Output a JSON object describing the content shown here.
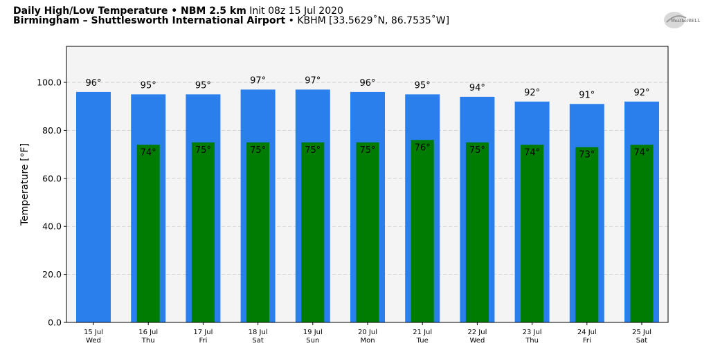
{
  "header": {
    "line1_bold": "Daily High/Low Temperature • NBM 2.5 km",
    "line1_rest": "Init 08z 15 Jul 2020",
    "line2_bold": "Birmingham – Shuttlesworth International Airport",
    "line2_rest": "• KBHM [33.5629˚N, 86.7535˚W]"
  },
  "logo": {
    "icon": "weatherbell-logo",
    "text": "WeatherBELL"
  },
  "colors": {
    "high": "#2b7fec",
    "low": "#017c02",
    "plot_bg": "#f4f4f4",
    "grid": "#cccccc"
  },
  "chart_data": {
    "type": "bar",
    "ylabel": "Temperature [°F]",
    "ylim": [
      0,
      115
    ],
    "yticks": [
      "0.0",
      "20.0",
      "40.0",
      "60.0",
      "80.0",
      "100.0"
    ],
    "ytick_values": [
      0,
      20,
      40,
      60,
      80,
      100
    ],
    "grid": true,
    "categories": [
      {
        "date": "15 Jul",
        "day": "Wed"
      },
      {
        "date": "16 Jul",
        "day": "Thu"
      },
      {
        "date": "17 Jul",
        "day": "Fri"
      },
      {
        "date": "18 Jul",
        "day": "Sat"
      },
      {
        "date": "19 Jul",
        "day": "Sun"
      },
      {
        "date": "20 Jul",
        "day": "Mon"
      },
      {
        "date": "21 Jul",
        "day": "Tue"
      },
      {
        "date": "22 Jul",
        "day": "Wed"
      },
      {
        "date": "23 Jul",
        "day": "Thu"
      },
      {
        "date": "24 Jul",
        "day": "Fri"
      },
      {
        "date": "25 Jul",
        "day": "Sat"
      }
    ],
    "series": [
      {
        "values": [
          96,
          95,
          95,
          97,
          97,
          96,
          95,
          94,
          92,
          91,
          92
        ],
        "labels": [
          "96°",
          "95°",
          "95°",
          "97°",
          "97°",
          "96°",
          "95°",
          "94°",
          "92°",
          "91°",
          "92°"
        ]
      },
      {
        "values": [
          null,
          74,
          75,
          75,
          75,
          75,
          76,
          75,
          74,
          73,
          74
        ],
        "labels": [
          "",
          "74°",
          "75°",
          "75°",
          "75°",
          "75°",
          "76°",
          "75°",
          "74°",
          "73°",
          "74°"
        ]
      }
    ]
  }
}
